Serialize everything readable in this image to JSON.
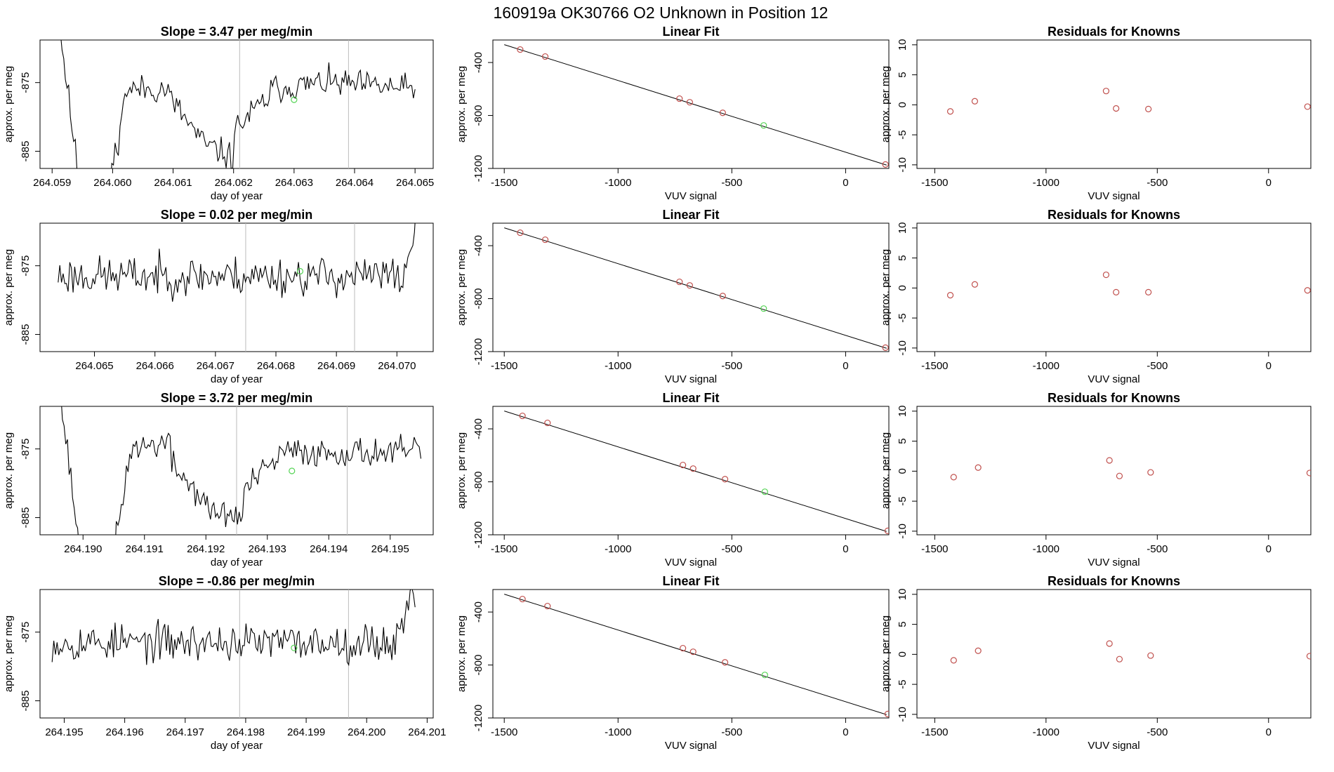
{
  "page_title": "160919a     OK30766   O2 Unknown in Position  12",
  "colors": {
    "axis": "#000000",
    "trace": "#000000",
    "marker_known": "#c0504d",
    "marker_unknown": "#55d455",
    "vline": "#bbbbbb"
  },
  "chart_data": [
    {
      "type": "line",
      "title": "Slope =  3.47  per meg/min",
      "xlabel": "day of year",
      "ylabel": "approx. per meg",
      "xlim": [
        264.0588,
        264.0653
      ],
      "ylim": [
        -887.5,
        -868.8
      ],
      "xticks": [
        264.059,
        264.06,
        264.061,
        264.062,
        264.063,
        264.064,
        264.065
      ],
      "xtick_labels": [
        "264.059",
        "264.060",
        "264.061",
        "264.062",
        "264.063",
        "264.064",
        "264.065"
      ],
      "yticks": [
        -875,
        -885
      ],
      "ytick_labels": [
        "-875",
        "-885"
      ],
      "vlines": [
        264.0621,
        264.0639
      ],
      "trace": {
        "x_start": 264.059,
        "x_end": 264.065,
        "n": 220,
        "seed": 11,
        "segments": [
          [
            0.0,
            0.08,
            -858,
            -892
          ],
          [
            0.08,
            0.16,
            -892,
            -892
          ],
          [
            0.16,
            0.2,
            -889,
            -878
          ],
          [
            0.2,
            0.32,
            -876,
            -876
          ],
          [
            0.32,
            0.42,
            -877,
            -884
          ],
          [
            0.42,
            0.5,
            -884,
            -886
          ],
          [
            0.5,
            0.6,
            -882,
            -877
          ],
          [
            0.6,
            0.75,
            -876,
            -875
          ],
          [
            0.75,
            1.0,
            -875,
            -876
          ]
        ],
        "noise": 1.6
      },
      "highlight": {
        "x": 264.063,
        "y": -877.5
      }
    },
    {
      "type": "scatter",
      "title": "Linear Fit",
      "xlabel": "VUV signal",
      "ylabel": "approx. per meg",
      "xlim": [
        -1550,
        190
      ],
      "ylim": [
        -1200,
        -230
      ],
      "xticks": [
        -1500,
        -1000,
        -500,
        0
      ],
      "xtick_labels": [
        "-1500",
        "-1000",
        "-500",
        "0"
      ],
      "yticks": [
        -400,
        -800,
        -1200
      ],
      "ytick_labels": [
        "-400",
        "-800",
        "-1200"
      ],
      "fit_line": {
        "x": [
          -1500,
          180
        ],
        "y": [
          -265,
          -1175
        ]
      },
      "points": [
        {
          "x": -1430,
          "y": -302
        },
        {
          "x": -1320,
          "y": -355
        },
        {
          "x": -730,
          "y": -673
        },
        {
          "x": -685,
          "y": -700
        },
        {
          "x": -540,
          "y": -780
        },
        {
          "x": 175,
          "y": -1170
        }
      ],
      "highlight": {
        "x": -360,
        "y": -875
      }
    },
    {
      "type": "scatter",
      "title": "Residuals for Knowns",
      "xlabel": "VUV signal",
      "ylabel": "approx. per meg",
      "xlim": [
        -1580,
        190
      ],
      "ylim": [
        -10.6,
        10.8
      ],
      "xticks": [
        -1500,
        -1000,
        -500,
        0
      ],
      "xtick_labels": [
        "-1500",
        "-1000",
        "-500",
        "0"
      ],
      "yticks": [
        10,
        5,
        0,
        -5,
        -10
      ],
      "ytick_labels": [
        "10",
        "5",
        "0",
        "-5",
        "-10"
      ],
      "points": [
        {
          "x": -1430,
          "y": -1.1
        },
        {
          "x": -1320,
          "y": 0.6
        },
        {
          "x": -730,
          "y": 2.3
        },
        {
          "x": -685,
          "y": -0.6
        },
        {
          "x": -540,
          "y": -0.7
        },
        {
          "x": 175,
          "y": -0.3
        }
      ]
    },
    {
      "type": "line",
      "title": "Slope =  0.02  per meg/min",
      "xlabel": "day of year",
      "ylabel": "approx. per meg",
      "xlim": [
        264.0641,
        264.0706
      ],
      "ylim": [
        -887.5,
        -868.8
      ],
      "xticks": [
        264.065,
        264.066,
        264.067,
        264.068,
        264.069,
        264.07
      ],
      "xtick_labels": [
        "264.065",
        "264.066",
        "264.067",
        "264.068",
        "264.069",
        "264.070"
      ],
      "yticks": [
        -875,
        -885
      ],
      "ytick_labels": [
        "-875",
        "-885"
      ],
      "vlines": [
        264.0675,
        264.0693
      ],
      "trace": {
        "x_start": 264.0644,
        "x_end": 264.0704,
        "n": 220,
        "seed": 23,
        "segments": [
          [
            0.0,
            0.96,
            -876.5,
            -876.5
          ],
          [
            0.96,
            1.0,
            -874,
            -866
          ]
        ],
        "noise": 2.2
      },
      "highlight": {
        "x": 264.0684,
        "y": -875.8
      }
    },
    {
      "type": "scatter",
      "title": "Linear Fit",
      "xlabel": "VUV signal",
      "ylabel": "approx. per meg",
      "xlim": [
        -1550,
        190
      ],
      "ylim": [
        -1200,
        -230
      ],
      "xticks": [
        -1500,
        -1000,
        -500,
        0
      ],
      "xtick_labels": [
        "-1500",
        "-1000",
        "-500",
        "0"
      ],
      "yticks": [
        -400,
        -800,
        -1200
      ],
      "ytick_labels": [
        "-400",
        "-800",
        "-1200"
      ],
      "fit_line": {
        "x": [
          -1500,
          180
        ],
        "y": [
          -265,
          -1175
        ]
      },
      "points": [
        {
          "x": -1430,
          "y": -302
        },
        {
          "x": -1320,
          "y": -355
        },
        {
          "x": -730,
          "y": -673
        },
        {
          "x": -685,
          "y": -700
        },
        {
          "x": -540,
          "y": -780
        },
        {
          "x": 175,
          "y": -1170
        }
      ],
      "highlight": {
        "x": -360,
        "y": -875
      }
    },
    {
      "type": "scatter",
      "title": "Residuals for Knowns",
      "xlabel": "VUV signal",
      "ylabel": "approx. per meg",
      "xlim": [
        -1580,
        190
      ],
      "ylim": [
        -10.6,
        10.8
      ],
      "xticks": [
        -1500,
        -1000,
        -500,
        0
      ],
      "xtick_labels": [
        "-1500",
        "-1000",
        "-500",
        "0"
      ],
      "yticks": [
        10,
        5,
        0,
        -5,
        -10
      ],
      "ytick_labels": [
        "10",
        "5",
        "0",
        "-5",
        "-10"
      ],
      "points": [
        {
          "x": -1430,
          "y": -1.2
        },
        {
          "x": -1320,
          "y": 0.6
        },
        {
          "x": -730,
          "y": 2.2
        },
        {
          "x": -685,
          "y": -0.7
        },
        {
          "x": -540,
          "y": -0.7
        },
        {
          "x": 175,
          "y": -0.4
        }
      ]
    },
    {
      "type": "line",
      "title": "Slope =  3.72  per meg/min",
      "xlabel": "day of year",
      "ylabel": "approx. per meg",
      "xlim": [
        264.1893,
        264.1957
      ],
      "ylim": [
        -887.5,
        -868.8
      ],
      "xticks": [
        264.19,
        264.191,
        264.192,
        264.193,
        264.194,
        264.195
      ],
      "xtick_labels": [
        "264.190",
        "264.191",
        "264.192",
        "264.193",
        "264.194",
        "264.195"
      ],
      "yticks": [
        -875,
        -885
      ],
      "ytick_labels": [
        "-875",
        "-885"
      ],
      "vlines": [
        264.1925,
        264.1943
      ],
      "trace": {
        "x_start": 264.1895,
        "x_end": 264.1955,
        "n": 220,
        "seed": 37,
        "segments": [
          [
            0.0,
            0.08,
            -858,
            -892
          ],
          [
            0.08,
            0.17,
            -892,
            -892
          ],
          [
            0.17,
            0.21,
            -889,
            -876
          ],
          [
            0.21,
            0.32,
            -875,
            -874
          ],
          [
            0.32,
            0.42,
            -877,
            -883
          ],
          [
            0.42,
            0.52,
            -884,
            -885
          ],
          [
            0.52,
            0.62,
            -881,
            -876
          ],
          [
            0.62,
            1.0,
            -875.5,
            -875.5
          ]
        ],
        "noise": 1.6
      },
      "highlight": {
        "x": 264.1934,
        "y": -878.2
      }
    },
    {
      "type": "scatter",
      "title": "Linear Fit",
      "xlabel": "VUV signal",
      "ylabel": "approx. per meg",
      "xlim": [
        -1550,
        190
      ],
      "ylim": [
        -1200,
        -230
      ],
      "xticks": [
        -1500,
        -1000,
        -500,
        0
      ],
      "xtick_labels": [
        "-1500",
        "-1000",
        "-500",
        "0"
      ],
      "yticks": [
        -400,
        -800,
        -1200
      ],
      "ytick_labels": [
        "-400",
        "-800",
        "-1200"
      ],
      "fit_line": {
        "x": [
          -1500,
          180
        ],
        "y": [
          -265,
          -1175
        ]
      },
      "points": [
        {
          "x": -1420,
          "y": -302
        },
        {
          "x": -1310,
          "y": -355
        },
        {
          "x": -715,
          "y": -673
        },
        {
          "x": -670,
          "y": -700
        },
        {
          "x": -530,
          "y": -780
        },
        {
          "x": 185,
          "y": -1170
        }
      ],
      "highlight": {
        "x": -355,
        "y": -875
      }
    },
    {
      "type": "scatter",
      "title": "Residuals for Knowns",
      "xlabel": "VUV signal",
      "ylabel": "approx. per meg",
      "xlim": [
        -1580,
        190
      ],
      "ylim": [
        -10.6,
        10.8
      ],
      "xticks": [
        -1500,
        -1000,
        -500,
        0
      ],
      "xtick_labels": [
        "-1500",
        "-1000",
        "-500",
        "0"
      ],
      "yticks": [
        10,
        5,
        0,
        -5,
        -10
      ],
      "ytick_labels": [
        "10",
        "5",
        "0",
        "-5",
        "-10"
      ],
      "points": [
        {
          "x": -1415,
          "y": -1.0
        },
        {
          "x": -1305,
          "y": 0.6
        },
        {
          "x": -715,
          "y": 1.8
        },
        {
          "x": -670,
          "y": -0.8
        },
        {
          "x": -530,
          "y": -0.2
        },
        {
          "x": 185,
          "y": -0.3
        }
      ]
    },
    {
      "type": "line",
      "title": "Slope =  -0.86  per meg/min",
      "xlabel": "day of year",
      "ylabel": "approx. per meg",
      "xlim": [
        264.1946,
        264.2011
      ],
      "ylim": [
        -887.5,
        -868.8
      ],
      "xticks": [
        264.195,
        264.196,
        264.197,
        264.198,
        264.199,
        264.2,
        264.201
      ],
      "xtick_labels": [
        "264.195",
        "264.196",
        "264.197",
        "264.198",
        "264.199",
        "264.200",
        "264.201"
      ],
      "yticks": [
        -875,
        -885
      ],
      "ytick_labels": [
        "-875",
        "-885"
      ],
      "vlines": [
        264.1979,
        264.1997
      ],
      "trace": {
        "x_start": 264.1948,
        "x_end": 264.2008,
        "n": 220,
        "seed": 53,
        "segments": [
          [
            0.0,
            0.95,
            -876.5,
            -876.5
          ],
          [
            0.95,
            1.0,
            -875,
            -869
          ]
        ],
        "noise": 2.1
      },
      "highlight": {
        "x": 264.1988,
        "y": -877.3
      }
    },
    {
      "type": "scatter",
      "title": "Linear Fit",
      "xlabel": "VUV signal",
      "ylabel": "approx. per meg",
      "xlim": [
        -1550,
        190
      ],
      "ylim": [
        -1200,
        -230
      ],
      "xticks": [
        -1500,
        -1000,
        -500,
        0
      ],
      "xtick_labels": [
        "-1500",
        "-1000",
        "-500",
        "0"
      ],
      "yticks": [
        -400,
        -800,
        -1200
      ],
      "ytick_labels": [
        "-400",
        "-800",
        "-1200"
      ],
      "fit_line": {
        "x": [
          -1500,
          180
        ],
        "y": [
          -265,
          -1175
        ]
      },
      "points": [
        {
          "x": -1420,
          "y": -302
        },
        {
          "x": -1310,
          "y": -355
        },
        {
          "x": -715,
          "y": -673
        },
        {
          "x": -670,
          "y": -700
        },
        {
          "x": -530,
          "y": -780
        },
        {
          "x": 185,
          "y": -1170
        }
      ],
      "highlight": {
        "x": -355,
        "y": -875
      }
    },
    {
      "type": "scatter",
      "title": "Residuals for Knowns",
      "xlabel": "VUV signal",
      "ylabel": "approx. per meg",
      "xlim": [
        -1580,
        190
      ],
      "ylim": [
        -10.6,
        10.8
      ],
      "xticks": [
        -1500,
        -1000,
        -500,
        0
      ],
      "xtick_labels": [
        "-1500",
        "-1000",
        "-500",
        "0"
      ],
      "yticks": [
        10,
        5,
        0,
        -5,
        -10
      ],
      "ytick_labels": [
        "10",
        "5",
        "0",
        "-5",
        "-10"
      ],
      "points": [
        {
          "x": -1415,
          "y": -1.0
        },
        {
          "x": -1305,
          "y": 0.6
        },
        {
          "x": -715,
          "y": 1.8
        },
        {
          "x": -670,
          "y": -0.8
        },
        {
          "x": -530,
          "y": -0.2
        },
        {
          "x": 185,
          "y": -0.3
        }
      ]
    }
  ]
}
